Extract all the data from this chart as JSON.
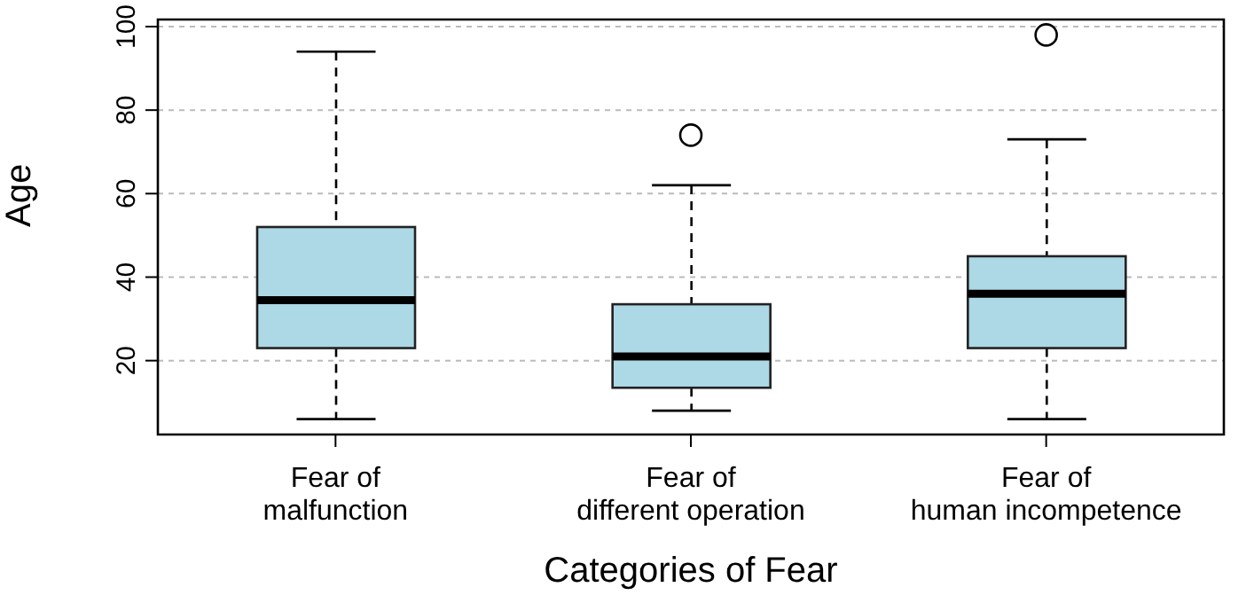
{
  "chart_data": {
    "type": "box",
    "xlabel": "Categories of Fear",
    "ylabel": "Age",
    "categories": [
      "Fear of\nmalfunction",
      "Fear of\ndifferent operation",
      "Fear of\nhuman incompetence"
    ],
    "boxes": [
      {
        "low": 6,
        "q1": 23,
        "median": 34.5,
        "q3": 52,
        "high": 94
      },
      {
        "low": 8,
        "q1": 13.5,
        "median": 21,
        "q3": 33.5,
        "high": 62,
        "outliers": [
          74
        ]
      },
      {
        "low": 6,
        "q1": 23,
        "median": 36,
        "q3": 45,
        "high": 73,
        "outliers": [
          98
        ]
      }
    ],
    "color": "#add8e6",
    "ylim": [
      2.3,
      101.7
    ],
    "yticks": [
      20,
      40,
      60,
      80,
      100
    ],
    "grid": "y"
  }
}
